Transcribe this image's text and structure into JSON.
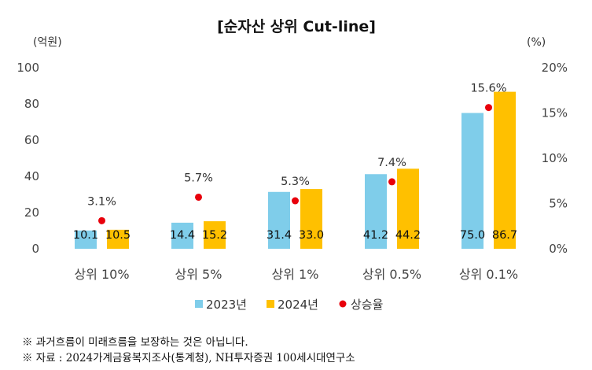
{
  "chart_data": {
    "type": "bar",
    "title": "[순자산 상위 Cut-line]",
    "left_unit": "(억원)",
    "right_unit": "(%)",
    "categories": [
      "상위 10%",
      "상위 5%",
      "상위 1%",
      "상위 0.5%",
      "상위 0.1%"
    ],
    "series": [
      {
        "name": "2023년",
        "type": "bar",
        "axis": "left",
        "color": "#7fcdea",
        "values": [
          10.1,
          14.4,
          31.4,
          41.2,
          75.0
        ],
        "labels": [
          "10.1",
          "14.4",
          "31.4",
          "41.2",
          "75.0"
        ]
      },
      {
        "name": "2024년",
        "type": "bar",
        "axis": "left",
        "color": "#ffc000",
        "values": [
          10.5,
          15.2,
          33.0,
          44.2,
          86.7
        ],
        "labels": [
          "10.5",
          "15.2",
          "33.0",
          "44.2",
          "86.7"
        ]
      },
      {
        "name": "상승율",
        "type": "scatter",
        "axis": "right",
        "color": "#e8000b",
        "values": [
          3.1,
          5.7,
          5.3,
          7.4,
          15.6
        ],
        "labels": [
          "3.1%",
          "5.7%",
          "5.3%",
          "7.4%",
          "15.6%"
        ]
      }
    ],
    "y_left": {
      "min": 0,
      "max": 100,
      "ticks": [
        "0",
        "20",
        "40",
        "60",
        "80",
        "100"
      ]
    },
    "y_right": {
      "min": 0,
      "max": 20,
      "ticks": [
        "0%",
        "5%",
        "10%",
        "15%",
        "20%"
      ]
    },
    "legend_position": "bottom",
    "grid": false
  },
  "notes": [
    "※ 과거흐름이 미래흐름을 보장하는 것은 아닙니다.",
    "※ 자료 : 2024가계금융복지조사(통계청), NH투자증권 100세시대연구소"
  ]
}
